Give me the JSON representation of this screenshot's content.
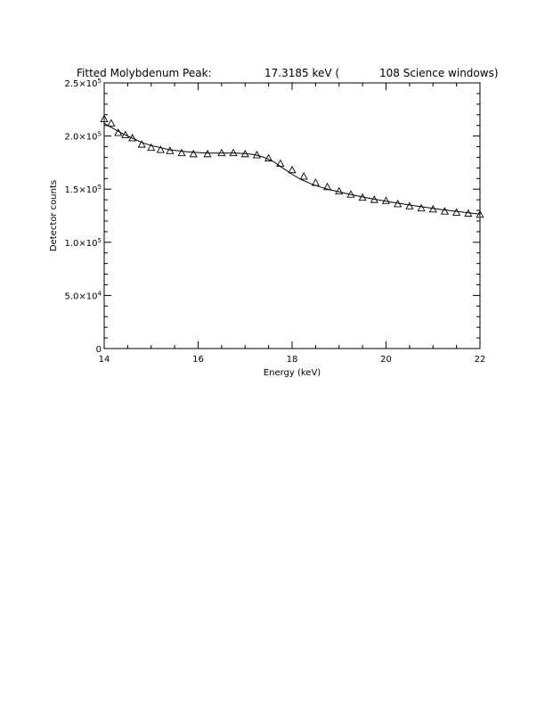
{
  "chart_data": {
    "type": "scatter",
    "title_parts": [
      "Fitted Molybdenum Peak:",
      "17.3185 keV (",
      "108 Science windows)"
    ],
    "xlabel": "Energy (keV)",
    "ylabel": "Detector counts",
    "xlim": [
      14,
      22
    ],
    "ylim": [
      0,
      250000
    ],
    "x_ticks": [
      {
        "value": 14,
        "label": "14"
      },
      {
        "value": 16,
        "label": "16"
      },
      {
        "value": 18,
        "label": "18"
      },
      {
        "value": 20,
        "label": "20"
      },
      {
        "value": 22,
        "label": "22"
      }
    ],
    "y_ticks": [
      {
        "value": 0,
        "mantissa": "0",
        "exp": ""
      },
      {
        "value": 50000,
        "mantissa": "5.0×10",
        "exp": "4"
      },
      {
        "value": 100000,
        "mantissa": "1.0×10",
        "exp": "5"
      },
      {
        "value": 150000,
        "mantissa": "1.5×10",
        "exp": "5"
      },
      {
        "value": 200000,
        "mantissa": "2.0×10",
        "exp": "5"
      },
      {
        "value": 250000,
        "mantissa": "2.5×10",
        "exp": "5"
      }
    ],
    "series": [
      {
        "marker": "triangle",
        "x": [
          14.0,
          14.15,
          14.3,
          14.45,
          14.6,
          14.8,
          15.0,
          15.2,
          15.4,
          15.65,
          15.9,
          16.2,
          16.5,
          16.75,
          17.0,
          17.25,
          17.5,
          17.75,
          18.0,
          18.25,
          18.5,
          18.75,
          19.0,
          19.25,
          19.5,
          19.75,
          20.0,
          20.25,
          20.5,
          20.75,
          21.0,
          21.25,
          21.5,
          21.75,
          22.0
        ],
        "y": [
          216000,
          212000,
          203000,
          201000,
          198000,
          192000,
          189000,
          187000,
          186000,
          184000,
          183000,
          183000,
          184000,
          184000,
          183000,
          182000,
          179000,
          174000,
          168000,
          162000,
          156000,
          152000,
          148000,
          145000,
          142000,
          140000,
          139000,
          136000,
          134000,
          132000,
          131000,
          129000,
          128000,
          127000,
          126000
        ]
      },
      {
        "marker": "line",
        "x": [
          14.0,
          14.2,
          14.4,
          14.6,
          14.8,
          15.0,
          15.2,
          15.4,
          15.6,
          15.8,
          16.0,
          16.2,
          16.4,
          16.6,
          16.8,
          17.0,
          17.2,
          17.4,
          17.6,
          17.8,
          18.0,
          18.2,
          18.4,
          18.6,
          18.8,
          19.0,
          19.2,
          19.4,
          19.6,
          19.8,
          20.0,
          20.2,
          20.4,
          20.6,
          20.8,
          21.0,
          21.2,
          21.4,
          21.6,
          21.8,
          22.0
        ],
        "y": [
          212000,
          207000,
          202000,
          198000,
          194000,
          191000,
          189000,
          187000,
          186000,
          185000,
          184500,
          184000,
          184000,
          184000,
          184000,
          183500,
          182500,
          180000,
          176000,
          170000,
          164000,
          159000,
          155000,
          152000,
          149500,
          147500,
          145500,
          143500,
          141800,
          140200,
          138700,
          137200,
          135800,
          134400,
          133100,
          131900,
          130700,
          129600,
          128500,
          127500,
          126500
        ]
      }
    ]
  }
}
